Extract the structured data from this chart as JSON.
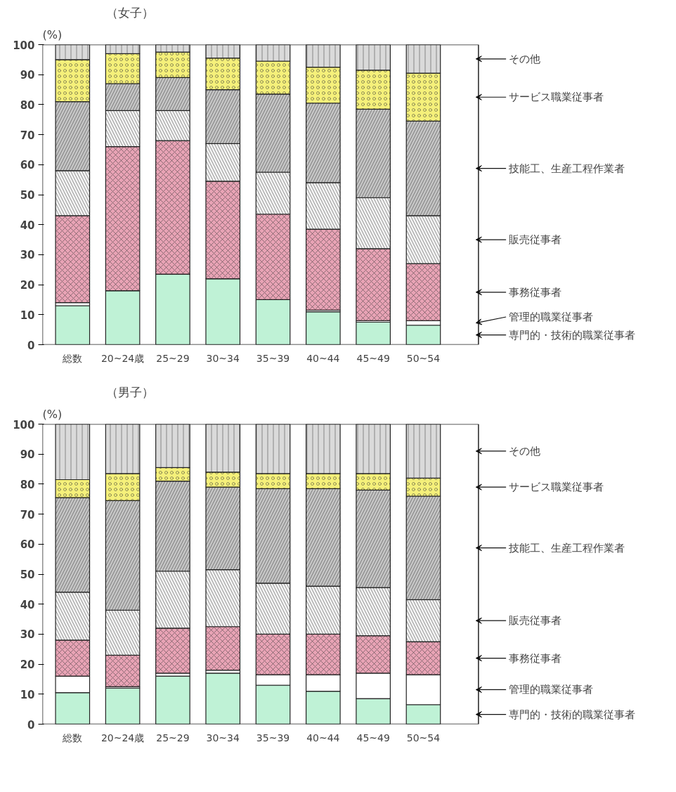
{
  "chart_data": [
    {
      "type": "bar",
      "stacked": true,
      "title": "（女子）",
      "ylabel": "(%)",
      "legend": "right",
      "grid": false,
      "ylim": [
        0,
        100
      ],
      "yticks": [
        0,
        10,
        20,
        30,
        40,
        50,
        60,
        70,
        80,
        90,
        100
      ],
      "categories": [
        "総数",
        "20~24歳",
        "25~29",
        "30~34",
        "35~39",
        "40~44",
        "45~49",
        "50~54"
      ],
      "series": [
        {
          "name": "専門的・技術的職業従事者",
          "color": "#bff2d6",
          "values": [
            13,
            18,
            23.5,
            22,
            15,
            11,
            7.5,
            6.5
          ]
        },
        {
          "name": "管理的職業従事者",
          "color": "#ffffff",
          "values": [
            1,
            0,
            0,
            0,
            0,
            0.5,
            0.5,
            1.5
          ]
        },
        {
          "name": "事務従事者",
          "color": "#e8a3b5",
          "values": [
            29,
            48,
            44.5,
            32.5,
            28.5,
            27,
            24,
            19
          ]
        },
        {
          "name": "販売従事者",
          "color": "#f2f2f2",
          "values": [
            15,
            12,
            10,
            12.5,
            14,
            15.5,
            17,
            16
          ]
        },
        {
          "name": "技能工、生産工程作業者",
          "color": "#c4c4c4",
          "values": [
            23,
            9,
            11,
            18,
            26,
            26.5,
            29.5,
            31.5
          ]
        },
        {
          "name": "サービス職業従事者",
          "color": "#f5f07a",
          "values": [
            14,
            10,
            8.5,
            10.5,
            11,
            12,
            13,
            16
          ]
        },
        {
          "name": "その他",
          "color": "#dadada",
          "values": [
            5,
            3,
            2.5,
            4.5,
            5.5,
            7.5,
            8.5,
            9.5
          ]
        }
      ]
    },
    {
      "type": "bar",
      "stacked": true,
      "title": "（男子）",
      "ylabel": "(%)",
      "legend": "right",
      "grid": false,
      "ylim": [
        0,
        100
      ],
      "yticks": [
        0,
        10,
        20,
        30,
        40,
        50,
        60,
        70,
        80,
        90,
        100
      ],
      "categories": [
        "総数",
        "20~24歳",
        "25~29",
        "30~34",
        "35~39",
        "40~44",
        "45~49",
        "50~54"
      ],
      "series": [
        {
          "name": "専門的・技術的職業従事者",
          "color": "#bff2d6",
          "values": [
            10.5,
            12,
            16,
            17,
            13,
            11,
            8.5,
            6.5
          ]
        },
        {
          "name": "管理的職業従事者",
          "color": "#ffffff",
          "values": [
            5.5,
            0.5,
            1,
            1,
            3.5,
            5.5,
            8.5,
            10
          ]
        },
        {
          "name": "事務従事者",
          "color": "#e8a3b5",
          "values": [
            12,
            10.5,
            15,
            14.5,
            13.5,
            13.5,
            12.5,
            11
          ]
        },
        {
          "name": "販売従事者",
          "color": "#f2f2f2",
          "values": [
            16,
            15,
            19,
            19,
            17,
            16,
            16,
            14
          ]
        },
        {
          "name": "技能工、生産工程作業者",
          "color": "#c4c4c4",
          "values": [
            31.5,
            36.5,
            30,
            27.5,
            31.5,
            32.5,
            32.5,
            34.5
          ]
        },
        {
          "name": "サービス職業従事者",
          "color": "#f5f07a",
          "values": [
            6,
            9,
            4.5,
            5,
            5,
            5,
            5.5,
            6
          ]
        },
        {
          "name": "その他",
          "color": "#dadada",
          "values": [
            18.5,
            16.5,
            14.5,
            16,
            16.5,
            16.5,
            16.5,
            18
          ]
        }
      ]
    }
  ]
}
